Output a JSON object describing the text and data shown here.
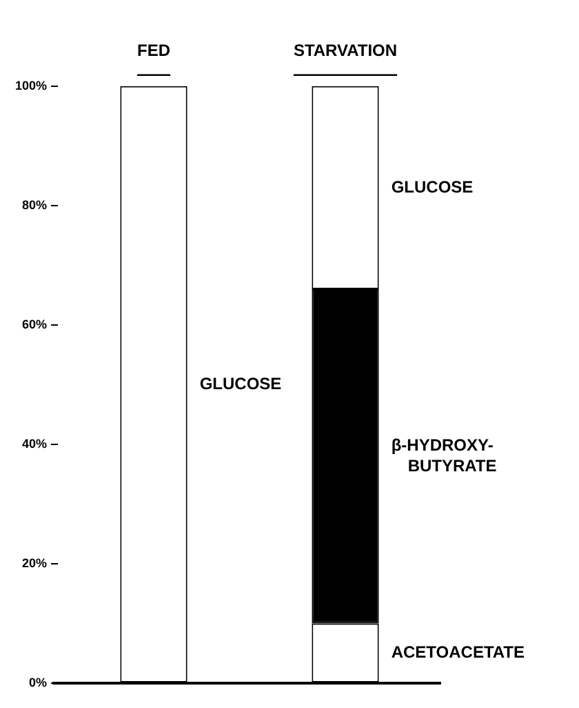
{
  "chart_data": {
    "type": "bar",
    "stacked": true,
    "categories": [
      "FED",
      "STARVATION"
    ],
    "series": [
      {
        "name": "ACETOACETATE",
        "color": "#ffffff",
        "values": [
          null,
          10
        ]
      },
      {
        "name": "β-HYDROXY-BUTYRATE",
        "color": "#000000",
        "values": [
          null,
          56
        ]
      },
      {
        "name": "GLUCOSE",
        "color": "#ffffff",
        "values": [
          100,
          34
        ]
      }
    ],
    "ylim": [
      0,
      100
    ],
    "yticks": [
      {
        "value": 0,
        "label": "0%"
      },
      {
        "value": 20,
        "label": "20%"
      },
      {
        "value": 40,
        "label": "40%"
      },
      {
        "value": 60,
        "label": "60%"
      },
      {
        "value": 80,
        "label": "80%"
      },
      {
        "value": 100,
        "label": "100%"
      }
    ],
    "grid": false,
    "legend": false
  }
}
